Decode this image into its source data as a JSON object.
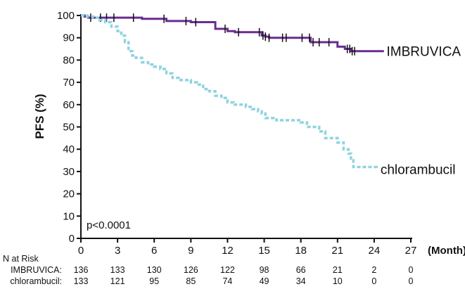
{
  "chart_data": {
    "type": "line",
    "title": "",
    "xlabel": "(Month)",
    "ylabel": "PFS (%)",
    "xlim": [
      0,
      27
    ],
    "ylim": [
      0,
      100
    ],
    "xticks": [
      0,
      3,
      6,
      9,
      12,
      15,
      18,
      21,
      24,
      27
    ],
    "yticks": [
      0,
      10,
      20,
      30,
      40,
      50,
      60,
      70,
      80,
      90,
      100
    ],
    "annotation": "p<0.0001",
    "colors": {
      "IMBRUVICA": "#6a2c91",
      "chlorambucil": "#8fd3e0"
    },
    "series": [
      {
        "name": "IMBRUVICA",
        "style": "solid",
        "x": [
          0,
          0.3,
          0.6,
          1.0,
          1.8,
          3.0,
          5.0,
          7.0,
          9.0,
          10.5,
          11.0,
          12.0,
          12.6,
          14.5,
          14.8,
          15.1,
          15.4,
          18.5,
          18.8,
          19.2,
          20.5,
          21.0,
          21.6,
          22.1,
          24.8
        ],
        "y": [
          100,
          99.5,
          99,
          99,
          99,
          99,
          98.5,
          97.5,
          97,
          97,
          94,
          93,
          92.5,
          92.5,
          91,
          90.5,
          90,
          90,
          88,
          88,
          88,
          86,
          85,
          84,
          84
        ],
        "censors": [
          0.8,
          1.6,
          2.1,
          2.7,
          4.3,
          6.8,
          8.6,
          9.4,
          11.8,
          12.9,
          14.6,
          14.9,
          15.1,
          15.4,
          16.5,
          16.8,
          18.1,
          18.7,
          19.0,
          19.5,
          20.3,
          21.8,
          22.0,
          22.2,
          22.4
        ]
      },
      {
        "name": "chlorambucil",
        "style": "dashed",
        "x": [
          0,
          0.5,
          1.0,
          1.5,
          2.0,
          2.5,
          3.0,
          3.3,
          3.6,
          3.9,
          4.2,
          4.5,
          5.0,
          5.5,
          6.0,
          6.5,
          7.0,
          7.5,
          8.0,
          8.5,
          9.0,
          9.5,
          10.0,
          10.5,
          11.0,
          11.5,
          12.0,
          12.5,
          13.0,
          13.5,
          14.0,
          14.5,
          14.8,
          15.1,
          15.5,
          16.0,
          17.0,
          18.0,
          18.5,
          19.0,
          19.5,
          20.0,
          21.0,
          21.5,
          21.9,
          22.1,
          22.3,
          24.2
        ],
        "y": [
          100,
          99.5,
          99,
          98,
          97,
          95,
          93,
          91,
          88,
          84,
          82,
          81,
          79,
          78,
          77,
          76,
          74,
          72,
          71,
          71,
          70,
          69,
          67,
          66,
          64,
          63,
          61,
          60,
          60,
          59,
          58,
          57,
          56,
          54,
          54,
          53,
          53,
          52,
          50,
          50,
          48,
          45,
          43,
          40,
          38,
          35,
          32,
          31
        ]
      }
    ],
    "series_labels": {
      "IMBRUVICA": "IMBRUVICA",
      "chlorambucil": "chlorambucil"
    }
  },
  "risk_table": {
    "title": "N at Risk",
    "rows": [
      {
        "label": "IMBRUVICA:",
        "values": [
          "136",
          "133",
          "130",
          "126",
          "122",
          "98",
          "66",
          "21",
          "2",
          "0"
        ]
      },
      {
        "label": "chlorambucil:",
        "values": [
          "133",
          "121",
          "95",
          "85",
          "74",
          "49",
          "34",
          "10",
          "0",
          "0"
        ]
      }
    ]
  }
}
